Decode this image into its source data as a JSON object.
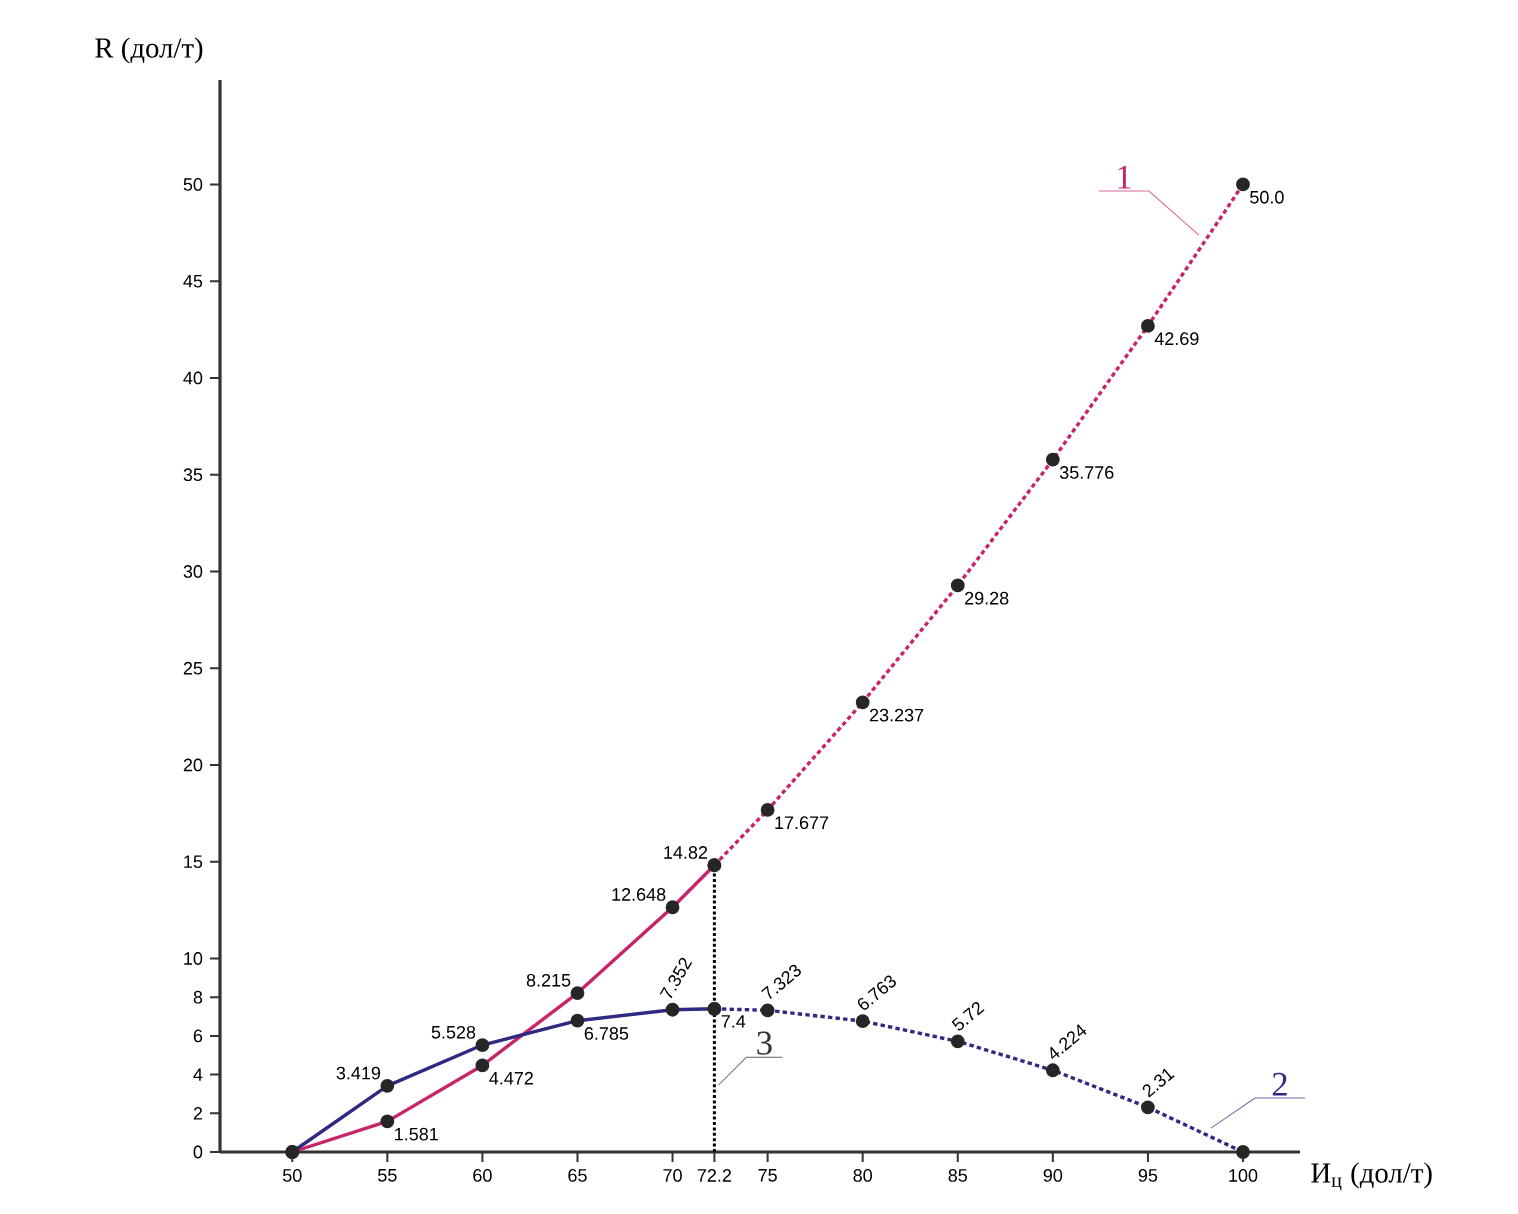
{
  "chart_data": {
    "type": "line",
    "xlabel": "И$_{ц}$ (дол/т)",
    "ylabel": "R (дол/т)",
    "xlim": [
      46.2,
      103
    ],
    "ylim": [
      0,
      55.4
    ],
    "xticks": [
      50,
      55,
      60,
      65,
      70,
      72.2,
      75,
      80,
      85,
      90,
      95,
      100
    ],
    "yticks": [
      0,
      2,
      4,
      6,
      8,
      10,
      15,
      20,
      25,
      30,
      35,
      40,
      45,
      50
    ],
    "marker": "circle",
    "grid": false,
    "series": [
      {
        "color": "#c8246a",
        "line_style": "solid",
        "x": [
          50,
          55,
          60,
          65,
          70,
          72.2
        ],
        "values": [
          0,
          1.581,
          4.472,
          8.215,
          12.648,
          14.82
        ],
        "value_labels": [
          null,
          "1.581",
          "4.472",
          "8.215",
          "12.648",
          "14.82"
        ]
      },
      {
        "name": "1",
        "color": "#c8246a",
        "line_style": "dotted",
        "x": [
          72.2,
          75,
          80,
          85,
          90,
          95,
          100
        ],
        "values": [
          14.82,
          17.677,
          23.237,
          29.28,
          35.776,
          42.69,
          50.0
        ],
        "value_labels": [
          null,
          "17.677",
          "23.237",
          "29.28",
          "35.776",
          "42.69",
          "50.0"
        ]
      },
      {
        "color": "#2e2a82",
        "line_style": "solid",
        "x": [
          50,
          55,
          60,
          65,
          70,
          72.2
        ],
        "values": [
          0,
          3.419,
          5.528,
          6.785,
          7.352,
          7.4
        ],
        "value_labels": [
          null,
          "3.419",
          "5.528",
          "6.785",
          "7.352",
          "7.4"
        ]
      },
      {
        "name": "2",
        "color": "#2e2a82",
        "line_style": "dotted",
        "x": [
          72.2,
          75,
          80,
          85,
          90,
          95,
          100
        ],
        "values": [
          7.4,
          7.323,
          6.763,
          5.72,
          4.224,
          2.31,
          0
        ],
        "value_labels": [
          null,
          "7.323",
          "6.763",
          "5.72",
          "4.224",
          "2.31",
          null
        ]
      }
    ],
    "ref_lines": [
      {
        "axis": "x",
        "value": 72.2,
        "line_style": "dotted",
        "color": "#000000"
      }
    ],
    "annotations": [
      "3"
    ]
  }
}
